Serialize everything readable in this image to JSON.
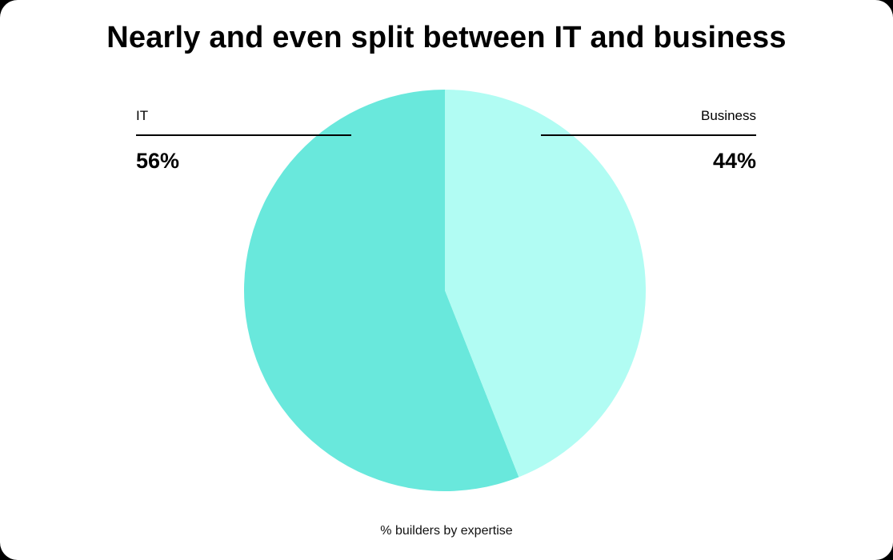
{
  "chart_data": {
    "type": "pie",
    "title": "Nearly and even split between IT and business",
    "categories": [
      "IT",
      "Business"
    ],
    "values": [
      56,
      44
    ],
    "labels": [
      "56%",
      "44%"
    ],
    "colors": [
      "#69E8DC",
      "#B1FCF3"
    ],
    "caption": "% builders by expertise",
    "legend_position": "callouts top-left / top-right"
  },
  "labels": {
    "it_name": "IT",
    "it_value": "56%",
    "business_name": "Business",
    "business_value": "44%"
  }
}
